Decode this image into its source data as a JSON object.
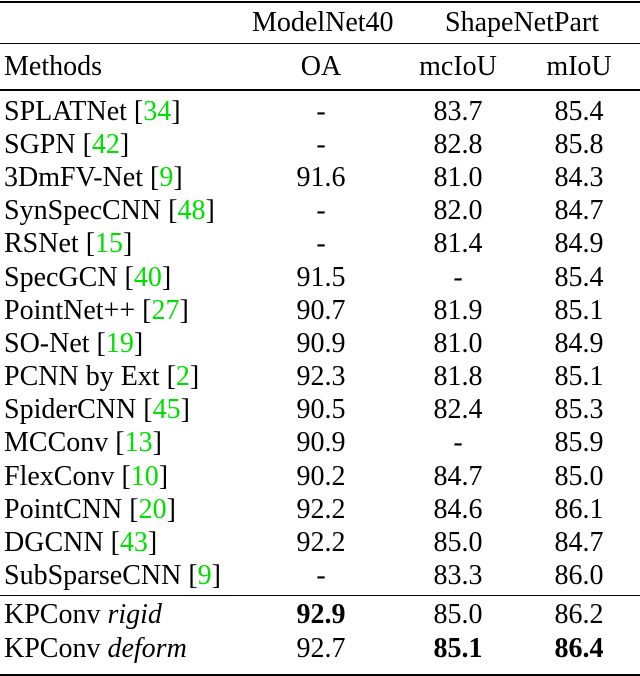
{
  "colors": {
    "citation_green": "#00e000",
    "rule_black": "#000000"
  },
  "header": {
    "group_modelnet": "ModelNet40",
    "group_shapenet": "ShapeNetPart",
    "col_methods": "Methods",
    "col_oa": "OA",
    "col_mciou": "mcIoU",
    "col_miou": "mIoU"
  },
  "rows": [
    {
      "name": "SPLATNet",
      "cite": "34",
      "oa": "-",
      "mciou": "83.7",
      "miou": "85.4"
    },
    {
      "name": "SGPN",
      "cite": "42",
      "oa": "-",
      "mciou": "82.8",
      "miou": "85.8"
    },
    {
      "name": "3DmFV-Net",
      "cite": "9",
      "oa": "91.6",
      "mciou": "81.0",
      "miou": "84.3"
    },
    {
      "name": "SynSpecCNN",
      "cite": "48",
      "oa": "-",
      "mciou": "82.0",
      "miou": "84.7"
    },
    {
      "name": "RSNet",
      "cite": "15",
      "oa": "-",
      "mciou": "81.4",
      "miou": "84.9"
    },
    {
      "name": "SpecGCN",
      "cite": "40",
      "oa": "91.5",
      "mciou": "-",
      "miou": "85.4"
    },
    {
      "name": "PointNet++",
      "cite": "27",
      "oa": "90.7",
      "mciou": "81.9",
      "miou": "85.1"
    },
    {
      "name": "SO-Net",
      "cite": "19",
      "oa": "90.9",
      "mciou": "81.0",
      "miou": "84.9"
    },
    {
      "name": "PCNN by Ext",
      "cite": "2",
      "oa": "92.3",
      "mciou": "81.8",
      "miou": "85.1"
    },
    {
      "name": "SpiderCNN",
      "cite": "45",
      "oa": "90.5",
      "mciou": "82.4",
      "miou": "85.3"
    },
    {
      "name": "MCConv",
      "cite": "13",
      "oa": "90.9",
      "mciou": "-",
      "miou": "85.9"
    },
    {
      "name": "FlexConv",
      "cite": "10",
      "oa": "90.2",
      "mciou": "84.7",
      "miou": "85.0"
    },
    {
      "name": "PointCNN",
      "cite": "20",
      "oa": "92.2",
      "mciou": "84.6",
      "miou": "86.1"
    },
    {
      "name": "DGCNN",
      "cite": "43",
      "oa": "92.2",
      "mciou": "85.0",
      "miou": "84.7"
    },
    {
      "name": "SubSparseCNN",
      "cite": "9",
      "oa": "-",
      "mciou": "83.3",
      "miou": "86.0"
    }
  ],
  "footer_rows": [
    {
      "name": "KPConv",
      "variant": "rigid",
      "oa": "92.9",
      "mciou": "85.0",
      "miou": "86.2"
    },
    {
      "name": "KPConv",
      "variant": "deform",
      "oa": "92.7",
      "mciou": "85.1",
      "miou": "86.4"
    }
  ]
}
